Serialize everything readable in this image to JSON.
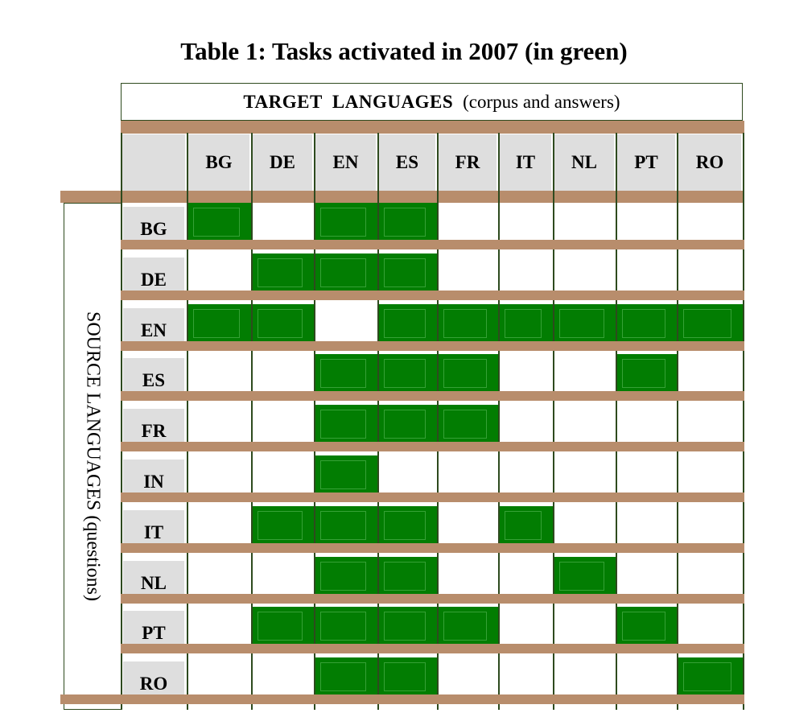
{
  "title": "Table 1: Tasks activated in 2007 (in green)",
  "target_header": {
    "label": "TARGET  LANGUAGES",
    "sublabel": "(corpus and answers)"
  },
  "source_header": {
    "label": "SOURCE LANGUAGES (questions)"
  },
  "colors": {
    "active": "#027d02",
    "inactive": "#ffffff",
    "separator": "#b88d6c",
    "header_bg": "#dedede",
    "border": "#2e4a1e"
  },
  "target_languages": [
    "BG",
    "DE",
    "EN",
    "ES",
    "FR",
    "IT",
    "NL",
    "PT",
    "RO"
  ],
  "source_languages": [
    "BG",
    "DE",
    "EN",
    "ES",
    "FR",
    "IN",
    "IT",
    "NL",
    "PT",
    "RO"
  ],
  "active_tasks": {
    "BG": [
      "BG",
      "EN",
      "ES"
    ],
    "DE": [
      "DE",
      "EN",
      "ES"
    ],
    "EN": [
      "BG",
      "DE",
      "ES",
      "FR",
      "IT",
      "NL",
      "PT",
      "RO"
    ],
    "ES": [
      "EN",
      "ES",
      "FR",
      "PT"
    ],
    "FR": [
      "EN",
      "ES",
      "FR"
    ],
    "IN": [
      "EN"
    ],
    "IT": [
      "DE",
      "EN",
      "ES",
      "IT"
    ],
    "NL": [
      "EN",
      "ES",
      "NL"
    ],
    "PT": [
      "DE",
      "EN",
      "ES",
      "FR",
      "PT"
    ],
    "RO": [
      "EN",
      "ES",
      "RO"
    ]
  }
}
